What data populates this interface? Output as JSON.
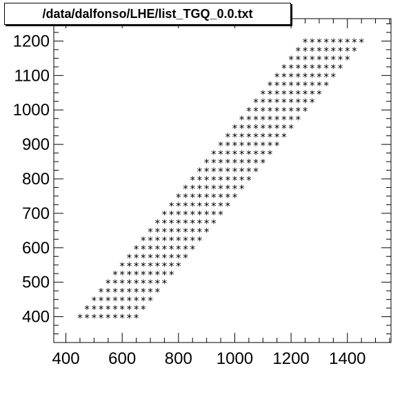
{
  "chart_data": {
    "type": "scatter",
    "title": "/data/dalfonso/LHE/list_TGQ_0.0.txt",
    "xlabel": "",
    "ylabel": "",
    "xlim": [
      357,
      1555
    ],
    "ylim": [
      325,
      1265
    ],
    "x_ticks": [
      400,
      600,
      800,
      1000,
      1200,
      1400
    ],
    "y_ticks": [
      400,
      500,
      600,
      700,
      800,
      900,
      1000,
      1100,
      1200
    ],
    "marker": "*",
    "grid": false,
    "points_description": "rows of points at y every 25; x from y+50 to y+250, step 25",
    "y_rows": [
      400,
      425,
      450,
      475,
      500,
      525,
      550,
      575,
      600,
      625,
      650,
      675,
      700,
      725,
      750,
      775,
      800,
      825,
      850,
      875,
      900,
      925,
      950,
      975,
      1000,
      1025,
      1050,
      1075,
      1100,
      1125,
      1150,
      1175,
      1200
    ],
    "x_offset_range": [
      50,
      250
    ],
    "x_step": 25
  }
}
